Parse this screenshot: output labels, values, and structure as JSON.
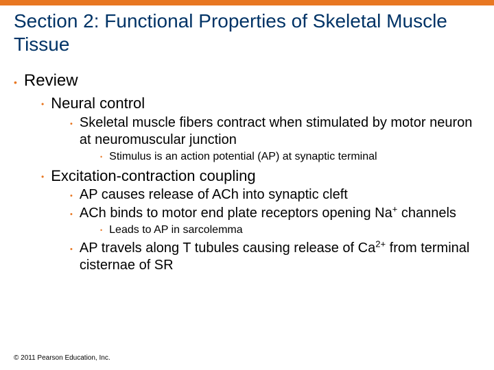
{
  "colors": {
    "accent": "#e87722",
    "title_text": "#003366",
    "bullet": "#e87722",
    "body_text": "#000000",
    "background": "#ffffff"
  },
  "typography": {
    "title_fontsize": 28,
    "level_fontsizes": [
      24,
      22,
      20,
      16
    ],
    "font_family": "Arial"
  },
  "title": "Section 2: Functional Properties of Skeletal Muscle Tissue",
  "bullets": [
    {
      "level": 1,
      "text": "Review"
    },
    {
      "level": 2,
      "text": "Neural control"
    },
    {
      "level": 3,
      "text": "Skeletal muscle fibers contract when stimulated by motor neuron at neuromuscular junction"
    },
    {
      "level": 4,
      "text": "Stimulus is an action potential (AP) at synaptic terminal"
    },
    {
      "level": 2,
      "text": "Excitation-contraction coupling"
    },
    {
      "level": 3,
      "text": "AP causes release of ACh into synaptic cleft"
    },
    {
      "level": 3,
      "text": "ACh binds to motor end plate receptors opening Na",
      "sup": "+",
      "text_after": " channels"
    },
    {
      "level": 4,
      "text": "Leads to AP in sarcolemma"
    },
    {
      "level": 3,
      "text": "AP travels along T tubules causing release of Ca",
      "sup": "2+",
      "text_after": " from terminal cisternae of SR"
    }
  ],
  "copyright": "© 2011 Pearson Education, Inc."
}
